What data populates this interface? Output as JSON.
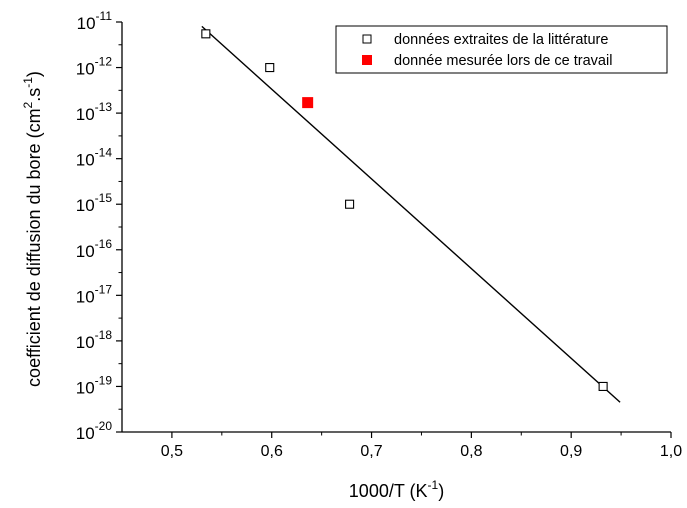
{
  "chart_data": {
    "type": "scatter",
    "title": "",
    "xlabel": "1000/T (K",
    "xlabel_sup": "-1",
    "xlabel_tail": ")",
    "ylabel": "coefficient de diffusion du bore (cm",
    "ylabel_sup1": "2",
    "ylabel_mid": ".s",
    "ylabel_sup2": "-1",
    "ylabel_tail": ")",
    "xlim": [
      0.45,
      1.0
    ],
    "ylim_log10": [
      -20,
      -11
    ],
    "y_scale": "log",
    "x_ticks": [
      0.5,
      0.6,
      0.7,
      0.8,
      0.9,
      1.0
    ],
    "x_tick_labels": [
      "0,5",
      "0,6",
      "0,7",
      "0,8",
      "0,9",
      "1,0"
    ],
    "y_tick_exponents": [
      -11,
      -12,
      -13,
      -14,
      -15,
      -16,
      -17,
      -18,
      -19,
      -20
    ],
    "y_tick_base": "10",
    "grid": false,
    "legend_position": "top-right",
    "series": [
      {
        "name": "données extraites de la littérature",
        "marker": "open-square",
        "color": "#000000",
        "points": [
          {
            "x": 0.534,
            "y": 5.5e-12
          },
          {
            "x": 0.598,
            "y": 1e-12
          },
          {
            "x": 0.678,
            "y": 1e-15
          },
          {
            "x": 0.932,
            "y": 1e-19
          }
        ]
      },
      {
        "name": "donnée mesurée lors de ce travail",
        "marker": "filled-square",
        "color": "#ff0000",
        "points": [
          {
            "x": 0.636,
            "y": 1.7e-13
          }
        ]
      }
    ],
    "fit_line": {
      "color": "#000000",
      "points": [
        {
          "x": 0.53,
          "y": 8e-12
        },
        {
          "x": 0.949,
          "y": 4.5e-20
        }
      ]
    }
  }
}
